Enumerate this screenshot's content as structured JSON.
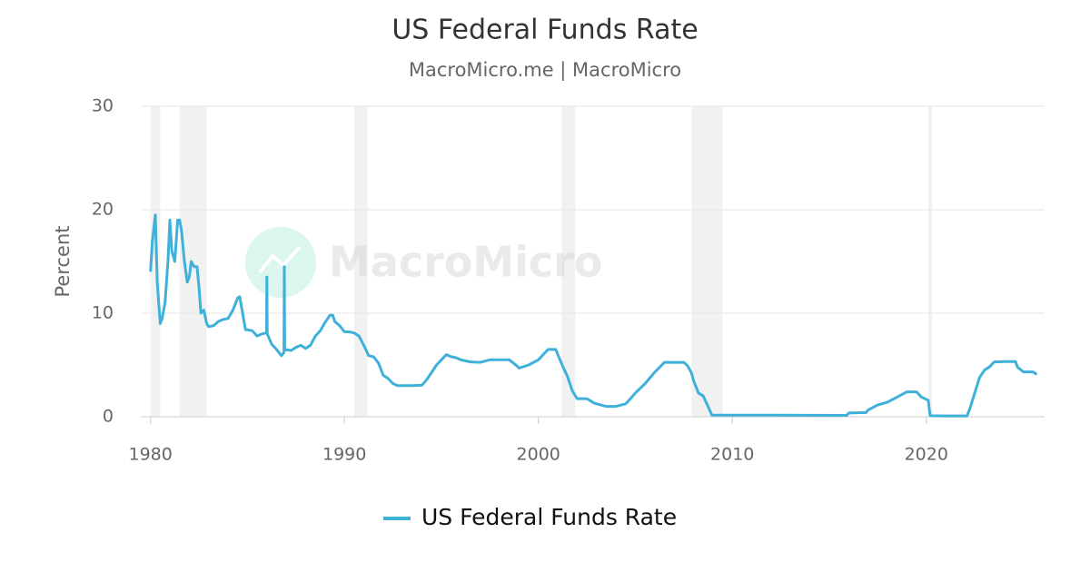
{
  "chart_data": {
    "type": "line",
    "title": "US Federal Funds Rate",
    "subtitle": "MacroMicro.me | MacroMicro",
    "watermark": "MacroMicro",
    "y_label": "Percent",
    "x": [
      1980.0,
      1980.1,
      1980.25,
      1980.35,
      1980.5,
      1980.6,
      1980.75,
      1980.9,
      1981.0,
      1981.1,
      1981.25,
      1981.4,
      1981.5,
      1981.6,
      1981.75,
      1981.9,
      1982.0,
      1982.1,
      1982.25,
      1982.4,
      1982.5,
      1982.6,
      1982.75,
      1982.9,
      1983.0,
      1983.25,
      1983.5,
      1983.75,
      1984.0,
      1984.25,
      1984.5,
      1984.6,
      1984.75,
      1984.9,
      1985.0,
      1985.25,
      1985.5,
      1985.75,
      1985.98,
      1986.0,
      1986.02,
      1986.25,
      1986.5,
      1986.75,
      1986.88,
      1986.9,
      1986.92,
      1987.25,
      1987.5,
      1987.75,
      1988.0,
      1988.25,
      1988.5,
      1988.75,
      1989.0,
      1989.25,
      1989.4,
      1989.5,
      1989.75,
      1990.0,
      1990.25,
      1990.5,
      1990.75,
      1991.0,
      1991.25,
      1991.5,
      1991.75,
      1992.0,
      1992.25,
      1992.5,
      1992.75,
      1993.0,
      1993.5,
      1994.0,
      1994.25,
      1994.5,
      1994.75,
      1995.0,
      1995.25,
      1995.5,
      1995.75,
      1996.0,
      1996.5,
      1997.0,
      1997.5,
      1998.0,
      1998.5,
      1998.9,
      1999.0,
      1999.5,
      2000.0,
      2000.5,
      2000.9,
      2001.0,
      2001.25,
      2001.5,
      2001.75,
      2002.0,
      2002.5,
      2002.9,
      2003.0,
      2003.5,
      2004.0,
      2004.5,
      2004.75,
      2005.0,
      2005.5,
      2006.0,
      2006.5,
      2007.0,
      2007.5,
      2007.7,
      2007.9,
      2008.0,
      2008.25,
      2008.5,
      2008.75,
      2008.95,
      2009.5,
      2012.0,
      2015.9,
      2016.0,
      2016.9,
      2017.0,
      2017.5,
      2018.0,
      2018.5,
      2019.0,
      2019.5,
      2019.75,
      2020.1,
      2020.2,
      2021.0,
      2022.1,
      2022.25,
      2022.5,
      2022.75,
      2023.0,
      2023.25,
      2023.5,
      2024.0,
      2024.6,
      2024.7,
      2024.9,
      2025.0,
      2025.5,
      2025.7
    ],
    "series": [
      {
        "name": "US Federal Funds Rate",
        "color": "#3fb0da",
        "values": [
          14,
          17,
          19.5,
          13,
          9,
          9.5,
          11,
          15,
          19,
          16,
          15,
          19,
          19,
          18,
          15,
          13,
          13.5,
          15,
          14.5,
          14.5,
          12.5,
          10,
          10.3,
          9,
          8.7,
          8.8,
          9.2,
          9.4,
          9.5,
          10.3,
          11.5,
          11.6,
          10,
          8.4,
          8.4,
          8.3,
          7.8,
          8,
          8.1,
          13.5,
          8,
          7,
          6.5,
          5.9,
          6.2,
          14.5,
          6.5,
          6.4,
          6.7,
          6.9,
          6.6,
          6.9,
          7.8,
          8.3,
          9.1,
          9.8,
          9.8,
          9.2,
          8.8,
          8.2,
          8.2,
          8.1,
          7.8,
          6.9,
          5.9,
          5.8,
          5.2,
          4.0,
          3.7,
          3.2,
          3.0,
          3.0,
          3.0,
          3.05,
          3.6,
          4.3,
          5.0,
          5.5,
          6.0,
          5.8,
          5.7,
          5.5,
          5.3,
          5.25,
          5.5,
          5.5,
          5.5,
          4.9,
          4.7,
          5.0,
          5.5,
          6.5,
          6.5,
          6.0,
          4.9,
          3.9,
          2.5,
          1.75,
          1.75,
          1.3,
          1.25,
          1.0,
          1.0,
          1.25,
          1.75,
          2.3,
          3.2,
          4.3,
          5.25,
          5.25,
          5.25,
          4.9,
          4.2,
          3.5,
          2.3,
          2.0,
          1.0,
          0.15,
          0.16,
          0.15,
          0.13,
          0.36,
          0.4,
          0.65,
          1.15,
          1.4,
          1.9,
          2.4,
          2.4,
          1.9,
          1.6,
          0.1,
          0.08,
          0.08,
          0.8,
          2.3,
          3.8,
          4.5,
          4.8,
          5.3,
          5.33,
          5.33,
          4.8,
          4.5,
          4.33,
          4.33,
          4.1
        ]
      }
    ],
    "shaded_ranges": [
      [
        1980.0,
        1980.5
      ],
      [
        1981.5,
        1982.9
      ],
      [
        1990.5,
        1991.2
      ],
      [
        2001.2,
        2001.9
      ],
      [
        2007.9,
        2009.5
      ],
      [
        2020.1,
        2020.3
      ]
    ],
    "xlim": [
      1979.5,
      2026.1
    ],
    "xticks": [
      1980,
      1990,
      2000,
      2010,
      2020
    ],
    "ylim": [
      0,
      30
    ],
    "yticks": [
      0,
      10,
      20,
      30
    ],
    "grid": true,
    "legend": "bottom"
  }
}
